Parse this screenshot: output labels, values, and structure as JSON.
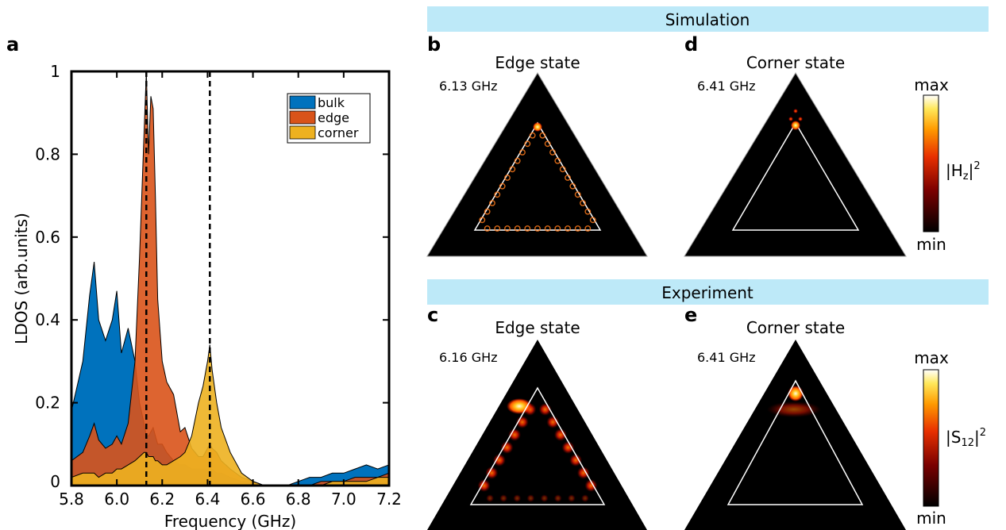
{
  "panels": {
    "a": "a",
    "b": "b",
    "c": "c",
    "d": "d",
    "e": "e"
  },
  "banners": {
    "simulation": "Simulation",
    "experiment": "Experiment"
  },
  "maps": {
    "b": {
      "title": "Edge state",
      "freq": "6.13 GHz"
    },
    "d": {
      "title": "Corner state",
      "freq": "6.41 GHz"
    },
    "c": {
      "title": "Edge state",
      "freq": "6.16 GHz"
    },
    "e": {
      "title": "Corner state",
      "freq": "6.41 GHz"
    }
  },
  "colorbars": {
    "sim": {
      "max": "max",
      "min": "min",
      "label": "|H",
      "sub": "z",
      "sup": "2"
    },
    "exp": {
      "max": "max",
      "min": "min",
      "label": "|S",
      "sub": "12",
      "sup": "2"
    }
  },
  "colors": {
    "bulk": "#0072bd",
    "edge": "#d95319",
    "corner": "#edb120",
    "banner": "#bde9f8"
  },
  "chart_data": {
    "type": "area",
    "xlabel": "Frequency (GHz)",
    "ylabel": "LDOS (arb.units)",
    "xlim": [
      5.8,
      7.2
    ],
    "ylim": [
      0,
      1
    ],
    "xticks": [
      "5.8",
      "6.0",
      "6.2",
      "6.4",
      "6.6",
      "6.8",
      "7.0",
      "7.2"
    ],
    "yticks": [
      "0",
      "0.2",
      "0.4",
      "0.6",
      "0.8",
      "1"
    ],
    "legend_position": "top-right",
    "vlines": [
      6.13,
      6.16,
      6.41
    ],
    "x": [
      5.8,
      5.85,
      5.88,
      5.9,
      5.92,
      5.95,
      5.98,
      6.0,
      6.02,
      6.05,
      6.08,
      6.1,
      6.12,
      6.13,
      6.14,
      6.15,
      6.16,
      6.17,
      6.18,
      6.2,
      6.22,
      6.25,
      6.28,
      6.3,
      6.33,
      6.36,
      6.38,
      6.4,
      6.41,
      6.42,
      6.44,
      6.46,
      6.5,
      6.55,
      6.6,
      6.65,
      6.7,
      6.75,
      6.8,
      6.85,
      6.9,
      6.95,
      7.0,
      7.05,
      7.1,
      7.15,
      7.2
    ],
    "series": [
      {
        "name": "bulk",
        "values": [
          0.18,
          0.3,
          0.46,
          0.54,
          0.4,
          0.35,
          0.4,
          0.47,
          0.32,
          0.38,
          0.3,
          0.2,
          0.15,
          0.12,
          0.12,
          0.13,
          0.14,
          0.12,
          0.1,
          0.1,
          0.08,
          0.06,
          0.05,
          0.05,
          0.04,
          0.04,
          0.04,
          0.04,
          0.04,
          0.04,
          0.03,
          0.03,
          0.02,
          0.01,
          0.01,
          0.0,
          0.0,
          0.0,
          0.01,
          0.02,
          0.02,
          0.03,
          0.03,
          0.04,
          0.05,
          0.04,
          0.05
        ]
      },
      {
        "name": "edge",
        "values": [
          0.06,
          0.08,
          0.12,
          0.15,
          0.11,
          0.09,
          0.1,
          0.12,
          0.1,
          0.15,
          0.3,
          0.55,
          0.85,
          1.0,
          0.8,
          0.94,
          0.91,
          0.7,
          0.45,
          0.3,
          0.25,
          0.22,
          0.13,
          0.14,
          0.09,
          0.07,
          0.07,
          0.09,
          0.1,
          0.09,
          0.08,
          0.06,
          0.04,
          0.02,
          0.01,
          0.0,
          0.0,
          0.0,
          0.0,
          0.0,
          0.01,
          0.01,
          0.01,
          0.02,
          0.02,
          0.02,
          0.03
        ]
      },
      {
        "name": "corner",
        "values": [
          0.02,
          0.03,
          0.03,
          0.03,
          0.02,
          0.03,
          0.03,
          0.04,
          0.04,
          0.05,
          0.06,
          0.07,
          0.08,
          0.08,
          0.07,
          0.07,
          0.07,
          0.06,
          0.06,
          0.05,
          0.05,
          0.06,
          0.07,
          0.08,
          0.12,
          0.2,
          0.24,
          0.3,
          0.34,
          0.28,
          0.2,
          0.14,
          0.08,
          0.03,
          0.01,
          0.0,
          0.0,
          0.0,
          0.0,
          0.0,
          0.0,
          0.01,
          0.01,
          0.01,
          0.01,
          0.02,
          0.02
        ]
      }
    ]
  }
}
